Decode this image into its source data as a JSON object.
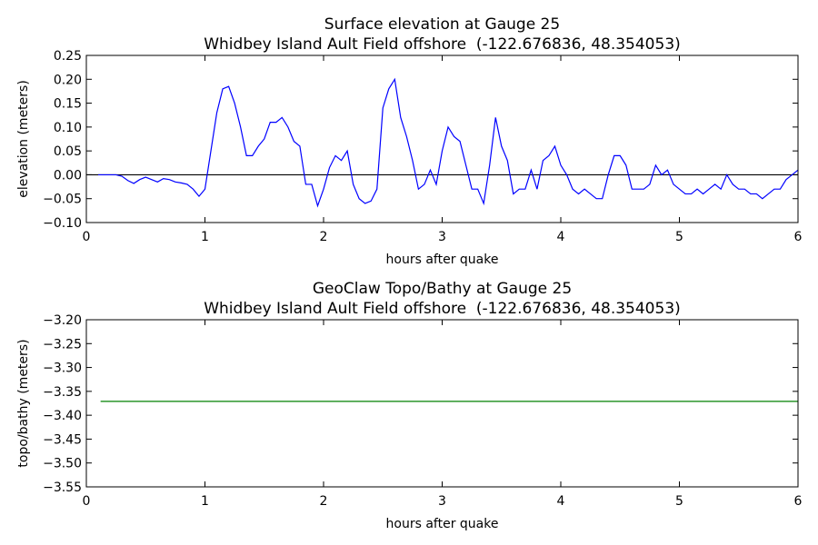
{
  "chart_data": [
    {
      "type": "line",
      "title": "Surface elevation at Gauge 25",
      "subtitle": "Whidbey Island Ault Field offshore  (-122.676836, 48.354053)",
      "xlabel": "hours after quake",
      "ylabel": "elevation (meters)",
      "xlim": [
        0,
        6
      ],
      "xticks": [
        0,
        1,
        2,
        3,
        4,
        5,
        6
      ],
      "ylim": [
        -0.1,
        0.25
      ],
      "yticks": [
        {
          "value": -0.1,
          "label": "−0.10"
        },
        {
          "value": -0.05,
          "label": "−0.05"
        },
        {
          "value": 0,
          "label": "0.00"
        },
        {
          "value": 0.05,
          "label": "0.05"
        },
        {
          "value": 0.1,
          "label": "0.10"
        },
        {
          "value": 0.15,
          "label": "0.15"
        },
        {
          "value": 0.2,
          "label": "0.20"
        },
        {
          "value": 0.25,
          "label": "0.25"
        }
      ],
      "hline": 0,
      "hline_color": "#000000",
      "x": [
        0.1,
        0.15,
        0.2,
        0.25,
        0.3,
        0.35,
        0.4,
        0.45,
        0.5,
        0.55,
        0.6,
        0.65,
        0.7,
        0.75,
        0.8,
        0.85,
        0.9,
        0.95,
        1.0,
        1.05,
        1.1,
        1.15,
        1.2,
        1.25,
        1.3,
        1.35,
        1.4,
        1.45,
        1.5,
        1.55,
        1.6,
        1.65,
        1.7,
        1.75,
        1.8,
        1.85,
        1.9,
        1.95,
        2.0,
        2.05,
        2.1,
        2.15,
        2.2,
        2.25,
        2.3,
        2.35,
        2.4,
        2.45,
        2.5,
        2.55,
        2.6,
        2.65,
        2.7,
        2.75,
        2.8,
        2.85,
        2.9,
        2.95,
        3.0,
        3.05,
        3.1,
        3.15,
        3.2,
        3.25,
        3.3,
        3.35,
        3.4,
        3.45,
        3.5,
        3.55,
        3.6,
        3.65,
        3.7,
        3.75,
        3.8,
        3.85,
        3.9,
        3.95,
        4.0,
        4.05,
        4.1,
        4.15,
        4.2,
        4.25,
        4.3,
        4.35,
        4.4,
        4.45,
        4.5,
        4.55,
        4.6,
        4.65,
        4.7,
        4.75,
        4.8,
        4.85,
        4.9,
        4.95,
        5.0,
        5.05,
        5.1,
        5.15,
        5.2,
        5.25,
        5.3,
        5.35,
        5.4,
        5.45,
        5.5,
        5.55,
        5.6,
        5.65,
        5.7,
        5.75,
        5.8,
        5.85,
        5.9,
        5.95,
        6.0
      ],
      "series": [
        {
          "color": "#0000ff",
          "values": [
            0,
            0,
            0,
            0,
            -0.003,
            -0.012,
            -0.018,
            -0.01,
            -0.005,
            -0.01,
            -0.015,
            -0.008,
            -0.01,
            -0.015,
            -0.017,
            -0.02,
            -0.03,
            -0.045,
            -0.03,
            0.05,
            0.13,
            0.18,
            0.185,
            0.15,
            0.1,
            0.04,
            0.04,
            0.06,
            0.075,
            0.11,
            0.11,
            0.12,
            0.1,
            0.07,
            0.06,
            -0.02,
            -0.02,
            -0.065,
            -0.03,
            0.015,
            0.04,
            0.03,
            0.05,
            -0.02,
            -0.05,
            -0.06,
            -0.055,
            -0.03,
            0.14,
            0.18,
            0.2,
            0.12,
            0.08,
            0.03,
            -0.03,
            -0.02,
            0.01,
            -0.02,
            0.05,
            0.1,
            0.08,
            0.07,
            0.02,
            -0.03,
            -0.03,
            -0.06,
            0.02,
            0.12,
            0.06,
            0.03,
            -0.04,
            -0.03,
            -0.03,
            0.01,
            -0.03,
            0.03,
            0.04,
            0.06,
            0.02,
            0,
            -0.03,
            -0.04,
            -0.03,
            -0.04,
            -0.05,
            -0.05,
            0,
            0.04,
            0.04,
            0.02,
            -0.03,
            -0.03,
            -0.03,
            -0.02,
            0.02,
            0,
            0.01,
            -0.02,
            -0.03,
            -0.04,
            -0.04,
            -0.03,
            -0.04,
            -0.03,
            -0.02,
            -0.03,
            0,
            -0.02,
            -0.03,
            -0.03,
            -0.04,
            -0.04,
            -0.05,
            -0.04,
            -0.03,
            -0.03,
            -0.01,
            0,
            0.01
          ]
        }
      ]
    },
    {
      "type": "line",
      "title": "GeoClaw Topo/Bathy at Gauge 25",
      "subtitle": "Whidbey Island Ault Field offshore  (-122.676836, 48.354053)",
      "xlabel": "hours after quake",
      "ylabel": "topo/bathy (meters)",
      "xlim": [
        0,
        6
      ],
      "xticks": [
        0,
        1,
        2,
        3,
        4,
        5,
        6
      ],
      "ylim": [
        -3.55,
        -3.2
      ],
      "yticks": [
        {
          "value": -3.55,
          "label": "−3.55"
        },
        {
          "value": -3.5,
          "label": "−3.50"
        },
        {
          "value": -3.45,
          "label": "−3.45"
        },
        {
          "value": -3.4,
          "label": "−3.40"
        },
        {
          "value": -3.35,
          "label": "−3.35"
        },
        {
          "value": -3.3,
          "label": "−3.30"
        },
        {
          "value": -3.25,
          "label": "−3.25"
        },
        {
          "value": -3.2,
          "label": "−3.20"
        }
      ],
      "x": [
        0.12,
        6.0
      ],
      "series": [
        {
          "color": "#008000",
          "values": [
            -3.371,
            -3.371
          ]
        }
      ]
    }
  ]
}
